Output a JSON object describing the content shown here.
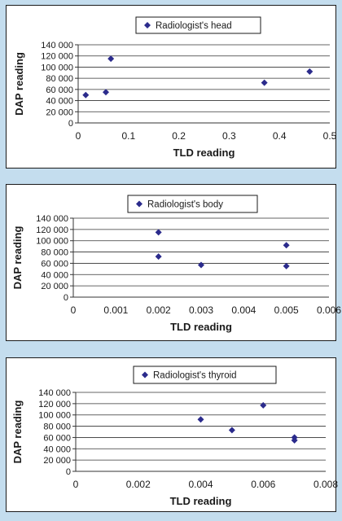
{
  "colors": {
    "page_background": "#c4ddee",
    "marker": "#2b2b8c",
    "gridline": "#333333",
    "axis_text": "#1a1a1a"
  },
  "chart_data": [
    {
      "type": "scatter",
      "title": "",
      "legend": {
        "label": "Radiologist's head",
        "placement": "top-center",
        "marker": "diamond"
      },
      "xlabel": "TLD reading",
      "ylabel": "DAP reading",
      "xlim": [
        0,
        0.5
      ],
      "ylim": [
        0,
        140000
      ],
      "x_ticks": [
        "0",
        "0.1",
        "0.2",
        "0.3",
        "0.4",
        "0.5"
      ],
      "y_ticks": [
        "0",
        "20 000",
        "40 000",
        "60 000",
        "80 000",
        "100 000",
        "120 000",
        "140 000"
      ],
      "grid": "horizontal",
      "points": [
        {
          "x": 0.015,
          "y": 50000
        },
        {
          "x": 0.055,
          "y": 55000
        },
        {
          "x": 0.065,
          "y": 115000
        },
        {
          "x": 0.37,
          "y": 72000
        },
        {
          "x": 0.46,
          "y": 92000
        }
      ]
    },
    {
      "type": "scatter",
      "title": "",
      "legend": {
        "label": "Radiologist's body",
        "placement": "top-center",
        "marker": "diamond"
      },
      "xlabel": "TLD reading",
      "ylabel": "DAP reading",
      "xlim": [
        0,
        0.006
      ],
      "ylim": [
        0,
        140000
      ],
      "x_ticks": [
        "0",
        "0.001",
        "0.002",
        "0.003",
        "0.004",
        "0.005",
        "0.006"
      ],
      "y_ticks": [
        "0",
        "20 000",
        "40 000",
        "60 000",
        "80 000",
        "100 000",
        "120 000",
        "140 000"
      ],
      "grid": "horizontal",
      "points": [
        {
          "x": 0.002,
          "y": 115000
        },
        {
          "x": 0.002,
          "y": 72000
        },
        {
          "x": 0.003,
          "y": 57000
        },
        {
          "x": 0.005,
          "y": 92000
        },
        {
          "x": 0.005,
          "y": 55000
        }
      ]
    },
    {
      "type": "scatter",
      "title": "",
      "legend": {
        "label": "Radiologist's thyroid",
        "placement": "top-center",
        "marker": "diamond"
      },
      "xlabel": "TLD reading",
      "ylabel": "DAP reading",
      "xlim": [
        0,
        0.008
      ],
      "ylim": [
        0,
        140000
      ],
      "x_ticks": [
        "0",
        "0.002",
        "0.004",
        "0.006",
        "0.008"
      ],
      "y_ticks": [
        "0",
        "20 000",
        "40 000",
        "60 000",
        "80 000",
        "100 000",
        "120 000",
        "140 000"
      ],
      "grid": "horizontal",
      "points": [
        {
          "x": 0.004,
          "y": 92000
        },
        {
          "x": 0.005,
          "y": 73000
        },
        {
          "x": 0.006,
          "y": 117000
        },
        {
          "x": 0.007,
          "y": 60000
        },
        {
          "x": 0.007,
          "y": 55000
        }
      ]
    }
  ]
}
